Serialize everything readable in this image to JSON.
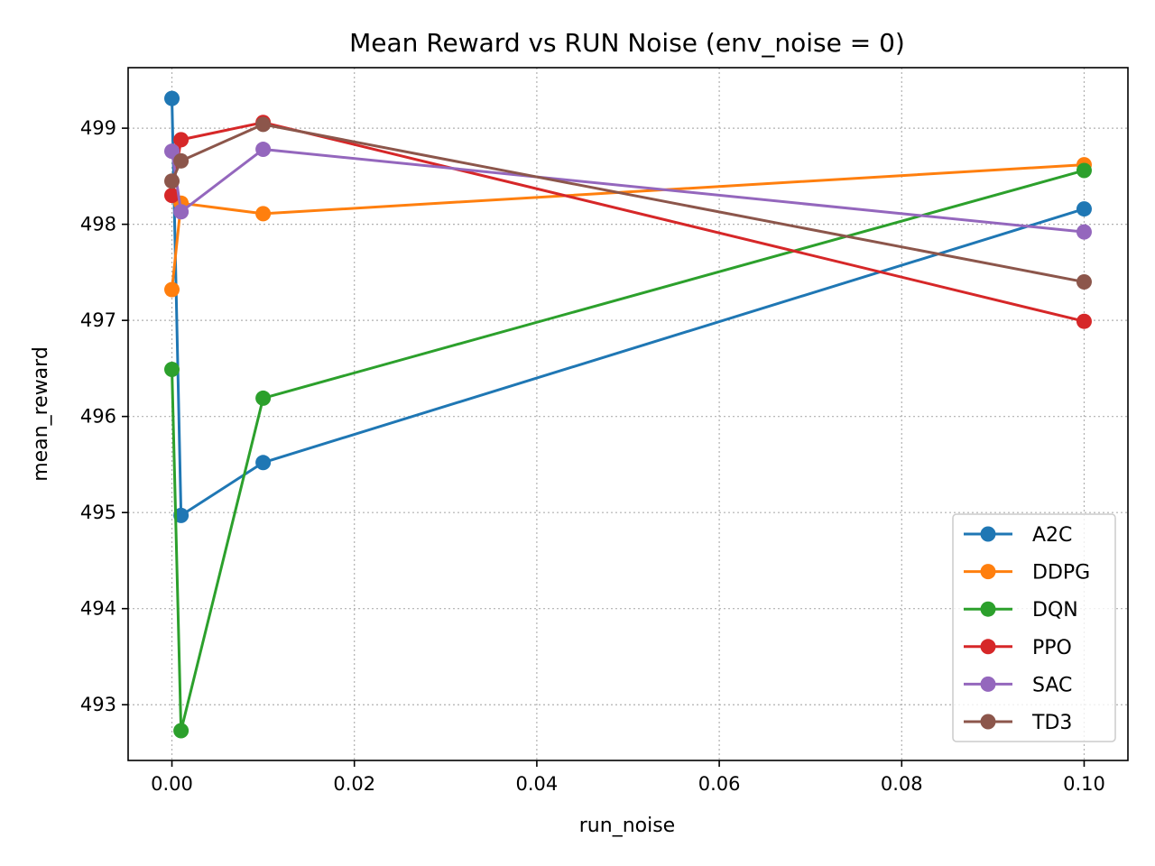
{
  "chart_data": {
    "type": "line",
    "title": "Mean Reward vs RUN Noise (env_noise = 0)",
    "xlabel": "run_noise",
    "ylabel": "mean_reward",
    "xlim": [
      -0.0048,
      0.1048
    ],
    "ylim": [
      492.42,
      499.63
    ],
    "xticks": [
      0.0,
      0.02,
      0.04,
      0.06,
      0.08,
      0.1
    ],
    "xtick_labels": [
      "0.00",
      "0.02",
      "0.04",
      "0.06",
      "0.08",
      "0.10"
    ],
    "yticks": [
      493,
      494,
      495,
      496,
      497,
      498,
      499
    ],
    "ytick_labels": [
      "493",
      "494",
      "495",
      "496",
      "497",
      "498",
      "499"
    ],
    "grid": true,
    "legend_position": "lower-right",
    "series": [
      {
        "name": "A2C",
        "color": "#1f77b4",
        "x": [
          0.0,
          0.001,
          0.01,
          0.1
        ],
        "y": [
          499.31,
          494.97,
          495.52,
          498.16
        ]
      },
      {
        "name": "DDPG",
        "color": "#ff7f0e",
        "x": [
          0.0,
          0.001,
          0.01,
          0.1
        ],
        "y": [
          497.32,
          498.22,
          498.11,
          498.62
        ]
      },
      {
        "name": "DQN",
        "color": "#2ca02c",
        "x": [
          0.0,
          0.001,
          0.01,
          0.1
        ],
        "y": [
          496.49,
          492.73,
          496.19,
          498.56
        ]
      },
      {
        "name": "PPO",
        "color": "#d62728",
        "x": [
          0.0,
          0.001,
          0.01,
          0.1
        ],
        "y": [
          498.3,
          498.88,
          499.06,
          496.99
        ]
      },
      {
        "name": "SAC",
        "color": "#9467bd",
        "x": [
          0.0,
          0.001,
          0.01,
          0.1
        ],
        "y": [
          498.76,
          498.13,
          498.78,
          497.92
        ]
      },
      {
        "name": "TD3",
        "color": "#8c564b",
        "x": [
          0.0,
          0.001,
          0.01,
          0.1
        ],
        "y": [
          498.45,
          498.66,
          499.04,
          497.4
        ]
      }
    ]
  }
}
